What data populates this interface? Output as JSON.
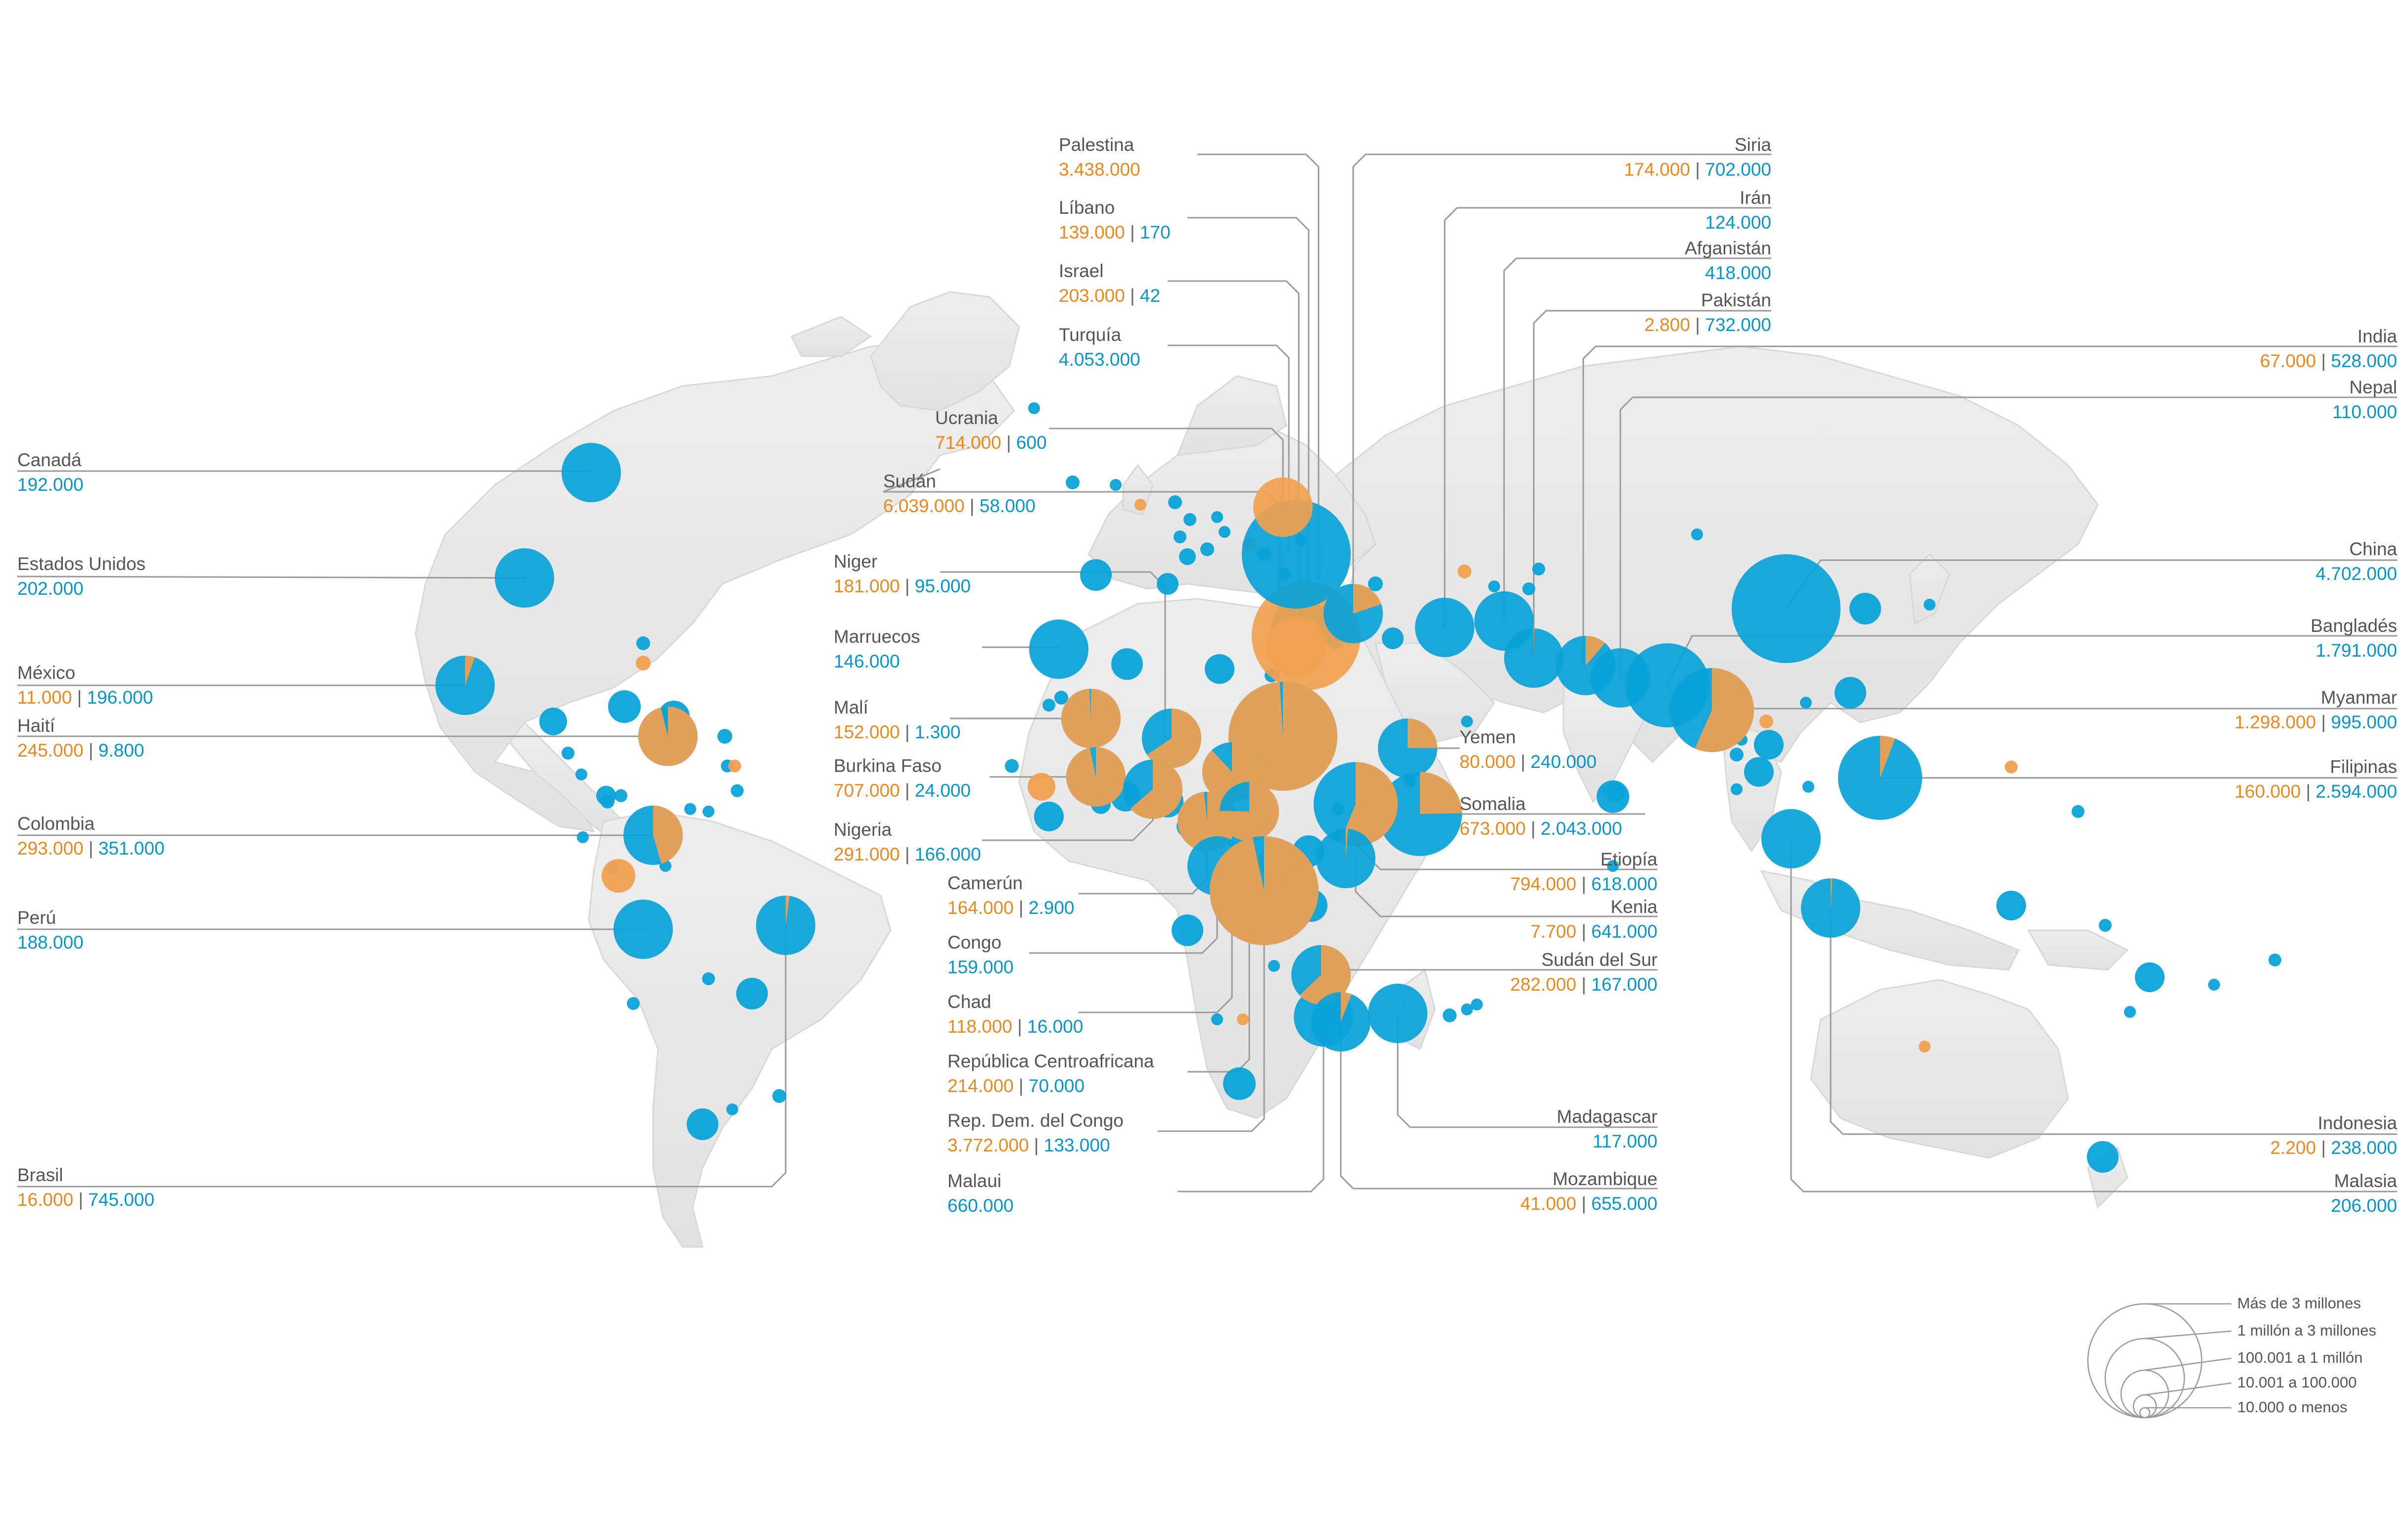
{
  "colors": {
    "displaced_abroad": "#f0a050",
    "displaced_internal": "#0aa3d8",
    "land": "#e7e7e7",
    "leader": "#9a9a9a"
  },
  "countries": [
    {
      "id": "palestina",
      "name": "Palestina",
      "a": "3.438.000",
      "b": ""
    },
    {
      "id": "libano",
      "name": "Líbano",
      "a": "139.000",
      "b": "170"
    },
    {
      "id": "israel",
      "name": "Israel",
      "a": "203.000",
      "b": "42"
    },
    {
      "id": "turquia",
      "name": "Turquía",
      "a": "",
      "b": "4.053.000"
    },
    {
      "id": "ucrania",
      "name": "Ucrania",
      "a": "714.000",
      "b": "600"
    },
    {
      "id": "sudan",
      "name": "Sudán",
      "a": "6.039.000",
      "b": "58.000"
    },
    {
      "id": "niger",
      "name": "Niger",
      "a": "181.000",
      "b": "95.000"
    },
    {
      "id": "marruecos",
      "name": "Marruecos",
      "a": "",
      "b": "146.000"
    },
    {
      "id": "mali",
      "name": "Malí",
      "a": "152.000",
      "b": "1.300"
    },
    {
      "id": "burkina",
      "name": "Burkina Faso",
      "a": "707.000",
      "b": "24.000"
    },
    {
      "id": "nigeria",
      "name": "Nigeria",
      "a": "291.000",
      "b": "166.000"
    },
    {
      "id": "camerun",
      "name": "Camerún",
      "a": "164.000",
      "b": "2.900"
    },
    {
      "id": "congo",
      "name": "Congo",
      "a": "",
      "b": "159.000"
    },
    {
      "id": "chad",
      "name": "Chad",
      "a": "118.000",
      "b": "16.000"
    },
    {
      "id": "rca",
      "name": "República Centroafricana",
      "a": "214.000",
      "b": "70.000"
    },
    {
      "id": "rdc",
      "name": "Rep. Dem. del Congo",
      "a": "3.772.000",
      "b": "133.000"
    },
    {
      "id": "malaui",
      "name": "Malaui",
      "a": "",
      "b": "660.000"
    },
    {
      "id": "siria",
      "name": "Siria",
      "a": "174.000",
      "b": "702.000"
    },
    {
      "id": "iran",
      "name": "Irán",
      "a": "",
      "b": "124.000"
    },
    {
      "id": "afganistan",
      "name": "Afganistán",
      "a": "",
      "b": "418.000"
    },
    {
      "id": "pakistan",
      "name": "Pakistán",
      "a": "2.800",
      "b": "732.000"
    },
    {
      "id": "yemen",
      "name": "Yemen",
      "a": "80.000",
      "b": "240.000"
    },
    {
      "id": "somalia",
      "name": "Somalia",
      "a": "673.000",
      "b": "2.043.000"
    },
    {
      "id": "etiopia",
      "name": "Etiopía",
      "a": "794.000",
      "b": "618.000"
    },
    {
      "id": "kenia",
      "name": "Kenia",
      "a": "7.700",
      "b": "641.000"
    },
    {
      "id": "sudansur",
      "name": "Sudán del Sur",
      "a": "282.000",
      "b": "167.000"
    },
    {
      "id": "madagascar",
      "name": "Madagascar",
      "a": "",
      "b": "117.000"
    },
    {
      "id": "mozambique",
      "name": "Mozambique",
      "a": "41.000",
      "b": "655.000"
    },
    {
      "id": "india",
      "name": "India",
      "a": "67.000",
      "b": "528.000"
    },
    {
      "id": "nepal",
      "name": "Nepal",
      "a": "",
      "b": "110.000"
    },
    {
      "id": "china",
      "name": "China",
      "a": "",
      "b": "4.702.000"
    },
    {
      "id": "banglades",
      "name": "Bangladés",
      "a": "",
      "b": "1.791.000"
    },
    {
      "id": "myanmar",
      "name": "Myanmar",
      "a": "1.298.000",
      "b": "995.000"
    },
    {
      "id": "filipinas",
      "name": "Filipinas",
      "a": "160.000",
      "b": "2.594.000"
    },
    {
      "id": "indonesia",
      "name": "Indonesia",
      "a": "2.200",
      "b": "238.000"
    },
    {
      "id": "malasia",
      "name": "Malasia",
      "a": "",
      "b": "206.000"
    },
    {
      "id": "canada",
      "name": "Canadá",
      "a": "",
      "b": "192.000"
    },
    {
      "id": "eeuu",
      "name": "Estados Unidos",
      "a": "",
      "b": "202.000"
    },
    {
      "id": "mexico",
      "name": "México",
      "a": "11.000",
      "b": "196.000"
    },
    {
      "id": "haiti",
      "name": "Haití",
      "a": "245.000",
      "b": "9.800"
    },
    {
      "id": "colombia",
      "name": "Colombia",
      "a": "293.000",
      "b": "351.000"
    },
    {
      "id": "peru",
      "name": "Perú",
      "a": "",
      "b": "188.000"
    },
    {
      "id": "brasil",
      "name": "Brasil",
      "a": "16.000",
      "b": "745.000"
    }
  ],
  "legend": {
    "items": [
      "Más de 3 millones",
      "1 millón a 3 millones",
      "100.001 a 1 millón",
      "10.001 a 100.000",
      "10.000 o menos"
    ]
  }
}
